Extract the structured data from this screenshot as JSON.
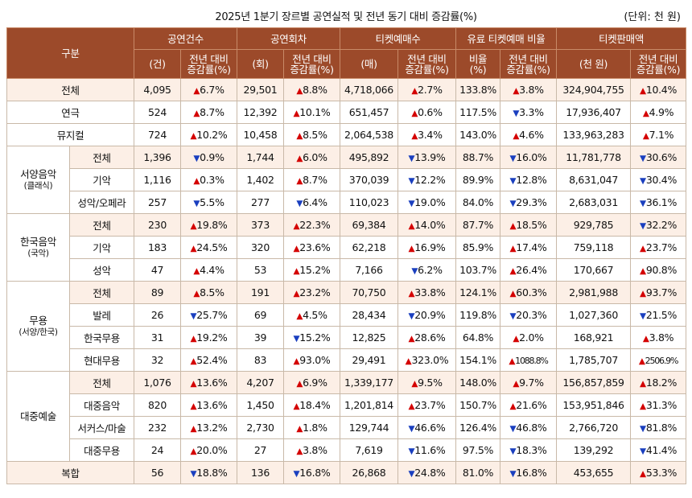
{
  "title": "2025년 1분기 장르별 공연실적 및 전년 동기 대비 증감률(%)",
  "unit": "(단위: 천 원)",
  "headers": {
    "category": "구분",
    "groups": [
      "공연건수",
      "공연회차",
      "티켓예매수",
      "유료 티켓예매 비율",
      "티켓판매액"
    ],
    "sub": [
      "(건)",
      "전년 대비\n증감률(%)",
      "(회)",
      "전년 대비\n증감률(%)",
      "(매)",
      "전년 대비\n증감률(%)",
      "비율\n(%)",
      "전년 대비\n증감률(%)",
      "(천 원)",
      "전년 대비\n증감률(%)"
    ]
  },
  "groups": {
    "western": {
      "name": "서양음악",
      "sub": "(클래식)"
    },
    "korean": {
      "name": "한국음악",
      "sub": "(국악)"
    },
    "dance": {
      "name": "무용",
      "sub": "(서양/한국)"
    },
    "popular": {
      "name": "대중예술",
      "sub": ""
    }
  },
  "rows": [
    {
      "label": "전체",
      "v": [
        "4,095",
        "6.7%",
        "29,501",
        "8.8%",
        "4,718,066",
        "2.7%",
        "133.8%",
        "3.8%",
        "324,904,755",
        "10.4%"
      ],
      "d": [
        "up",
        "up",
        "up",
        "up",
        "up"
      ]
    },
    {
      "label": "연극",
      "v": [
        "524",
        "8.7%",
        "12,392",
        "10.1%",
        "651,457",
        "0.6%",
        "117.5%",
        "3.3%",
        "17,936,407",
        "4.9%"
      ],
      "d": [
        "up",
        "up",
        "up",
        "down",
        "up"
      ]
    },
    {
      "label": "뮤지컬",
      "v": [
        "724",
        "10.2%",
        "10,458",
        "8.5%",
        "2,064,538",
        "3.4%",
        "143.0%",
        "4.6%",
        "133,963,283",
        "7.1%"
      ],
      "d": [
        "up",
        "up",
        "up",
        "up",
        "up"
      ]
    },
    {
      "label": "전체",
      "v": [
        "1,396",
        "0.9%",
        "1,744",
        "6.0%",
        "495,892",
        "13.9%",
        "88.7%",
        "16.0%",
        "11,781,778",
        "30.6%"
      ],
      "d": [
        "down",
        "up",
        "down",
        "down",
        "down"
      ]
    },
    {
      "label": "기악",
      "v": [
        "1,116",
        "0.3%",
        "1,402",
        "8.7%",
        "370,039",
        "12.2%",
        "89.9%",
        "12.8%",
        "8,631,047",
        "30.4%"
      ],
      "d": [
        "up",
        "up",
        "down",
        "down",
        "down"
      ]
    },
    {
      "label": "성악/오페라",
      "v": [
        "257",
        "5.5%",
        "277",
        "6.4%",
        "110,023",
        "19.0%",
        "84.0%",
        "29.3%",
        "2,683,031",
        "36.1%"
      ],
      "d": [
        "down",
        "down",
        "down",
        "down",
        "down"
      ]
    },
    {
      "label": "전체",
      "v": [
        "230",
        "19.8%",
        "373",
        "22.3%",
        "69,384",
        "14.0%",
        "87.7%",
        "18.5%",
        "929,785",
        "32.2%"
      ],
      "d": [
        "up",
        "up",
        "up",
        "up",
        "down"
      ]
    },
    {
      "label": "기악",
      "v": [
        "183",
        "24.5%",
        "320",
        "23.6%",
        "62,218",
        "16.9%",
        "85.9%",
        "17.4%",
        "759,118",
        "23.7%"
      ],
      "d": [
        "up",
        "up",
        "up",
        "up",
        "up"
      ]
    },
    {
      "label": "성악",
      "v": [
        "47",
        "4.4%",
        "53",
        "15.2%",
        "7,166",
        "6.2%",
        "103.7%",
        "26.4%",
        "170,667",
        "90.8%"
      ],
      "d": [
        "up",
        "up",
        "down",
        "up",
        "up"
      ]
    },
    {
      "label": "전체",
      "v": [
        "89",
        "8.5%",
        "191",
        "23.2%",
        "70,750",
        "33.8%",
        "124.1%",
        "60.3%",
        "2,981,988",
        "93.7%"
      ],
      "d": [
        "up",
        "up",
        "up",
        "up",
        "up"
      ]
    },
    {
      "label": "발레",
      "v": [
        "26",
        "25.7%",
        "69",
        "4.5%",
        "28,434",
        "20.9%",
        "119.8%",
        "20.3%",
        "1,027,360",
        "21.5%"
      ],
      "d": [
        "down",
        "up",
        "down",
        "down",
        "down"
      ]
    },
    {
      "label": "한국무용",
      "v": [
        "31",
        "19.2%",
        "39",
        "15.2%",
        "12,825",
        "28.6%",
        "64.8%",
        "2.0%",
        "168,921",
        "3.8%"
      ],
      "d": [
        "up",
        "down",
        "up",
        "up",
        "up"
      ]
    },
    {
      "label": "현대무용",
      "v": [
        "32",
        "52.4%",
        "83",
        "93.0%",
        "29,491",
        "323.0%",
        "154.1%",
        "1088.8%",
        "1,785,707",
        "2506.9%"
      ],
      "d": [
        "up",
        "up",
        "up",
        "up",
        "up"
      ]
    },
    {
      "label": "전체",
      "v": [
        "1,076",
        "13.6%",
        "4,207",
        "6.9%",
        "1,339,177",
        "9.5%",
        "148.0%",
        "9.7%",
        "156,857,859",
        "18.2%"
      ],
      "d": [
        "up",
        "up",
        "up",
        "up",
        "up"
      ]
    },
    {
      "label": "대중음악",
      "v": [
        "820",
        "13.6%",
        "1,450",
        "18.4%",
        "1,201,814",
        "23.7%",
        "150.7%",
        "21.6%",
        "153,951,846",
        "31.3%"
      ],
      "d": [
        "up",
        "up",
        "up",
        "up",
        "up"
      ]
    },
    {
      "label": "서커스/마술",
      "v": [
        "232",
        "13.2%",
        "2,730",
        "1.8%",
        "129,744",
        "46.6%",
        "126.4%",
        "46.8%",
        "2,766,720",
        "81.8%"
      ],
      "d": [
        "up",
        "up",
        "down",
        "down",
        "down"
      ]
    },
    {
      "label": "대중무용",
      "v": [
        "24",
        "20.0%",
        "27",
        "3.8%",
        "7,619",
        "11.6%",
        "97.5%",
        "18.3%",
        "139,292",
        "41.4%"
      ],
      "d": [
        "up",
        "up",
        "down",
        "down",
        "down"
      ]
    },
    {
      "label": "복합",
      "v": [
        "56",
        "18.8%",
        "136",
        "16.8%",
        "26,868",
        "24.8%",
        "81.0%",
        "16.8%",
        "453,655",
        "53.3%"
      ],
      "d": [
        "down",
        "down",
        "down",
        "down",
        "up"
      ]
    }
  ],
  "symbols": {
    "up": "▲",
    "down": "▼"
  }
}
